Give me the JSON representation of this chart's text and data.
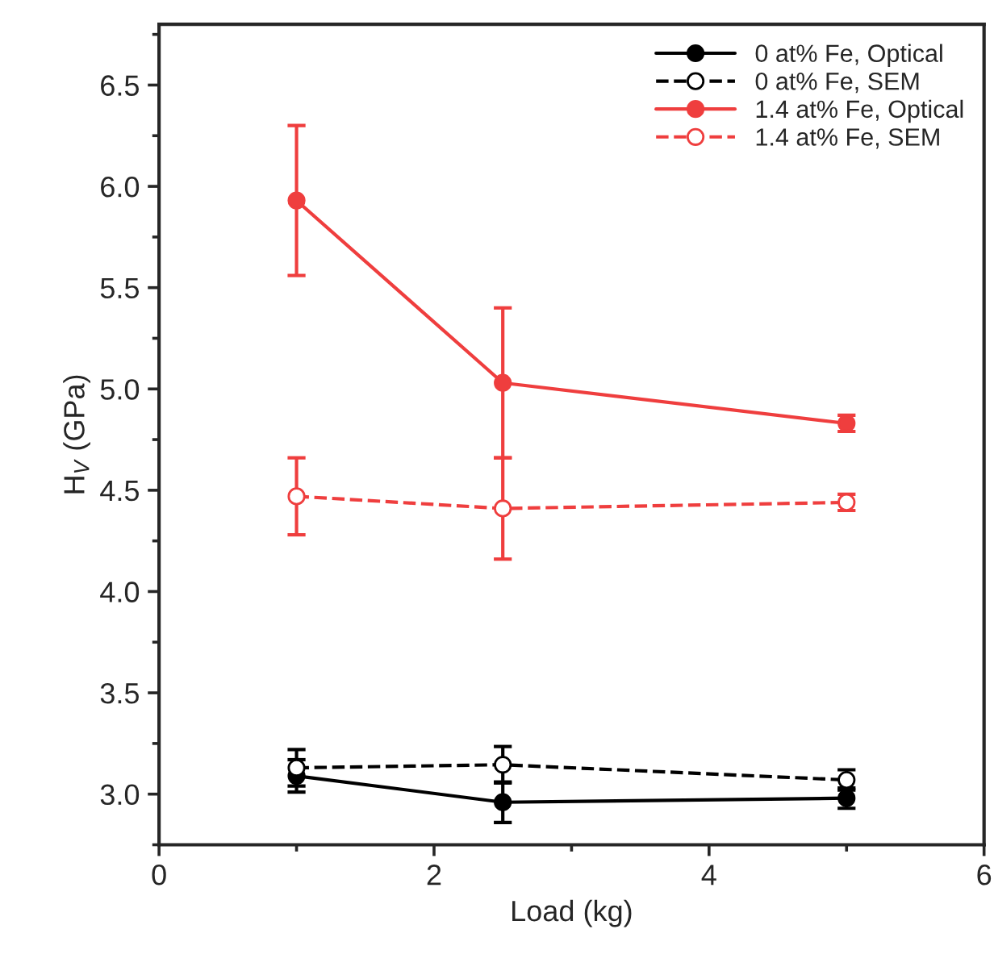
{
  "chart_data": {
    "type": "line",
    "xlabel": "Load (kg)",
    "ylabel": "H$_{V}$ (GPa)",
    "x": [
      1,
      2.5,
      5
    ],
    "xlim": [
      0,
      6
    ],
    "xticks": [
      0,
      2,
      4,
      6
    ],
    "ylim": [
      2.75,
      6.8
    ],
    "yticks": [
      {
        "value": 3,
        "label": "3.0"
      },
      3.5,
      {
        "value": 4,
        "label": "4.0"
      },
      4.5,
      {
        "value": 5,
        "label": "5.0"
      },
      5.5,
      {
        "value": 6,
        "label": "6.0"
      },
      6.5
    ],
    "legend": "top right",
    "marker": "circle",
    "grid": false,
    "series": [
      {
        "name": "0 at% Fe, Optical",
        "color": "#000000",
        "line_style": "solid",
        "values": [
          3.09,
          2.96,
          2.98
        ],
        "errors": [
          0.08,
          0.1,
          0.05
        ]
      },
      {
        "name": "0 at% Fe, SEM",
        "color": "#000000",
        "line_style": "dashed",
        "values": [
          3.13,
          3.145,
          3.07
        ],
        "errors": [
          0.09,
          0.09,
          0.05
        ]
      },
      {
        "name": "1.4 at% Fe, Optical",
        "color": "#ef3e3e",
        "line_style": "solid",
        "values": [
          5.93,
          5.03,
          4.83
        ],
        "errors": [
          0.37,
          0.37,
          0.04
        ]
      },
      {
        "name": "1.4 at% Fe, SEM",
        "color": "#ef3e3e",
        "line_style": "dashed",
        "values": [
          4.47,
          4.41,
          4.44
        ],
        "errors": [
          0.19,
          0.25,
          0.04
        ]
      }
    ]
  }
}
